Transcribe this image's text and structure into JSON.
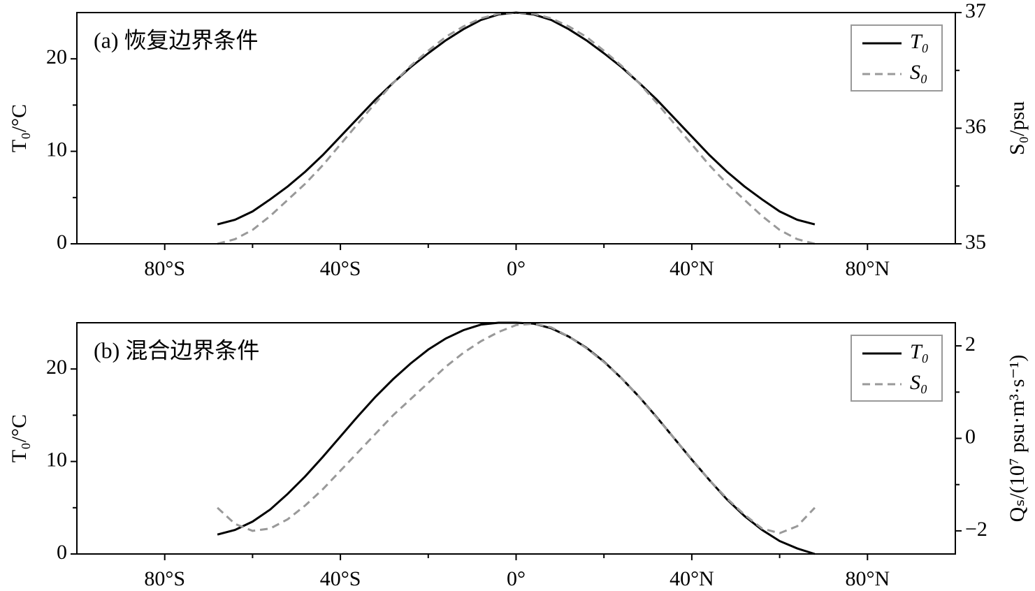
{
  "chart_data": [
    {
      "type": "line",
      "title": "(a) 恢复边界条件",
      "x": [
        -68,
        -64,
        -60,
        -56,
        -52,
        -48,
        -44,
        -40,
        -36,
        -32,
        -28,
        -24,
        -20,
        -16,
        -12,
        -8,
        -4,
        0,
        4,
        8,
        12,
        16,
        20,
        24,
        28,
        32,
        36,
        40,
        44,
        48,
        52,
        56,
        60,
        64,
        68
      ],
      "series": [
        {
          "name": "T₀",
          "color": "#000000",
          "linestyle": "solid",
          "values": [
            2.1,
            2.6,
            3.5,
            4.8,
            6.2,
            7.8,
            9.6,
            11.6,
            13.6,
            15.6,
            17.4,
            19.1,
            20.6,
            22.0,
            23.2,
            24.2,
            24.8,
            25.0,
            24.8,
            24.2,
            23.2,
            22.0,
            20.6,
            19.1,
            17.4,
            15.6,
            13.6,
            11.6,
            9.6,
            7.8,
            6.2,
            4.8,
            3.5,
            2.6,
            2.1
          ]
        },
        {
          "name": "S₀",
          "color": "#999999",
          "linestyle": "dashed",
          "axis": "y2",
          "values": [
            35.0,
            35.04,
            35.12,
            35.24,
            35.38,
            35.52,
            35.68,
            35.86,
            36.04,
            36.22,
            36.39,
            36.54,
            36.67,
            36.79,
            36.88,
            36.95,
            36.99,
            37.0,
            36.99,
            36.95,
            36.88,
            36.79,
            36.67,
            36.54,
            36.39,
            36.22,
            36.04,
            35.86,
            35.68,
            35.52,
            35.38,
            35.24,
            35.12,
            35.04,
            35.0
          ]
        }
      ],
      "xlim": [
        -100,
        100
      ],
      "xticks": [
        {
          "value": -80,
          "label": "80°S"
        },
        {
          "value": -40,
          "label": "40°S"
        },
        {
          "value": 0,
          "label": "0°"
        },
        {
          "value": 40,
          "label": "40°N"
        },
        {
          "value": 80,
          "label": "80°N"
        }
      ],
      "xminorticks": [
        -60,
        -20,
        20,
        60
      ],
      "ylim": [
        0,
        25
      ],
      "yticks": [
        0,
        10,
        20
      ],
      "yminorticks": [
        5,
        15
      ],
      "y2lim": [
        35,
        37
      ],
      "y2ticks": [
        35,
        36,
        37
      ],
      "y2minorticks": [
        35.5,
        36.5
      ],
      "ylabel": "T₀/°C",
      "y2label": "S₀/psu",
      "legend": "upper right"
    },
    {
      "type": "line",
      "title": "(b) 混合边界条件",
      "x": [
        -68,
        -64,
        -60,
        -56,
        -52,
        -48,
        -44,
        -40,
        -36,
        -32,
        -28,
        -24,
        -20,
        -16,
        -12,
        -8,
        -4,
        0,
        4,
        8,
        12,
        16,
        20,
        24,
        28,
        32,
        36,
        40,
        44,
        48,
        52,
        56,
        60,
        64,
        68
      ],
      "series": [
        {
          "name": "T₀",
          "color": "#000000",
          "linestyle": "solid",
          "values": [
            2.1,
            2.6,
            3.5,
            4.8,
            6.5,
            8.4,
            10.5,
            12.7,
            14.9,
            17.0,
            18.9,
            20.6,
            22.1,
            23.3,
            24.2,
            24.8,
            25.0,
            25.0,
            24.9,
            24.4,
            23.5,
            22.3,
            20.8,
            19.0,
            17.0,
            14.8,
            12.5,
            10.2,
            8.0,
            5.9,
            4.1,
            2.6,
            1.4,
            0.6,
            0.0
          ]
        },
        {
          "name": "S₀",
          "color": "#999999",
          "linestyle": "dashed",
          "axis": "y2",
          "values": [
            -1.5,
            -1.85,
            -2.0,
            -1.95,
            -1.75,
            -1.45,
            -1.1,
            -0.7,
            -0.3,
            0.1,
            0.5,
            0.85,
            1.2,
            1.55,
            1.85,
            2.1,
            2.3,
            2.45,
            2.48,
            2.4,
            2.2,
            1.95,
            1.65,
            1.3,
            0.9,
            0.45,
            0.0,
            -0.45,
            -0.9,
            -1.3,
            -1.65,
            -1.95,
            -2.05,
            -1.9,
            -1.5
          ]
        }
      ],
      "xlim": [
        -100,
        100
      ],
      "xticks": [
        {
          "value": -80,
          "label": "80°S"
        },
        {
          "value": -40,
          "label": "40°S"
        },
        {
          "value": 0,
          "label": "0°"
        },
        {
          "value": 40,
          "label": "40°N"
        },
        {
          "value": 80,
          "label": "80°N"
        }
      ],
      "xminorticks": [
        -60,
        -20,
        20,
        60
      ],
      "ylim": [
        0,
        25
      ],
      "yticks": [
        0,
        10,
        20
      ],
      "yminorticks": [
        5,
        15
      ],
      "y2lim": [
        -2.5,
        2.5
      ],
      "y2ticks": [
        {
          "value": -2,
          "label": "−2"
        },
        0,
        2
      ],
      "y2minorticks": [
        -1,
        1
      ],
      "ylabel": "T₀/°C",
      "y2label": "Qₛ/(10⁷ psu·m³·s⁻¹)",
      "legend": "upper right"
    }
  ]
}
